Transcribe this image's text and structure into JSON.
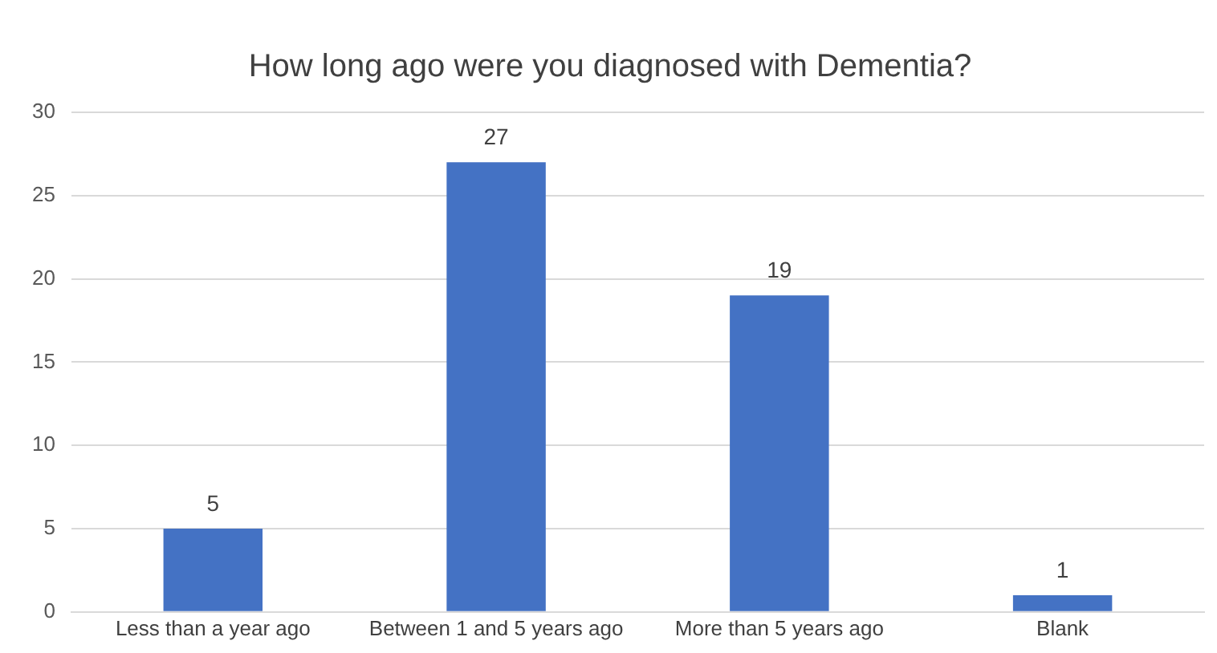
{
  "chart_data": {
    "type": "bar",
    "title": "How long ago were you diagnosed with Dementia?",
    "categories": [
      "Less than a year ago",
      "Between 1 and 5 years ago",
      "More than 5 years ago",
      "Blank"
    ],
    "values": [
      5,
      27,
      19,
      1
    ],
    "color": "#4472c4",
    "ylim": [
      0,
      30
    ],
    "yticks": [
      0,
      5,
      10,
      15,
      20,
      25,
      30
    ],
    "grid": "y",
    "data_labels": true,
    "legend": false
  }
}
